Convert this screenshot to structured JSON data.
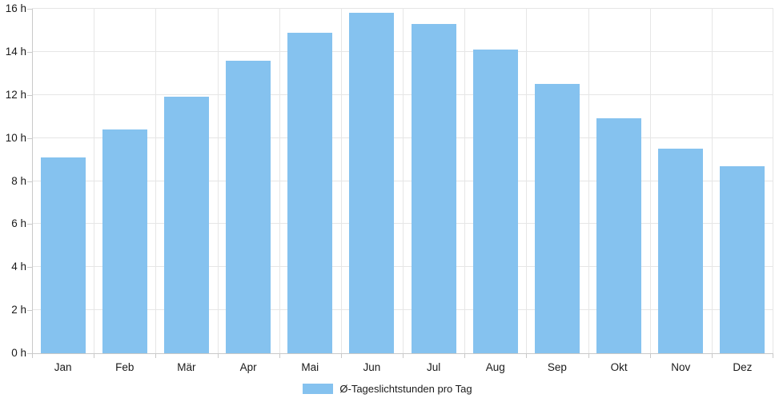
{
  "chart_data": {
    "type": "bar",
    "title": "",
    "xlabel": "",
    "ylabel": "",
    "categories": [
      "Jan",
      "Feb",
      "Mär",
      "Apr",
      "Mai",
      "Jun",
      "Jul",
      "Aug",
      "Sep",
      "Okt",
      "Nov",
      "Dez"
    ],
    "series": [
      {
        "name": "Ø-Tageslichtstunden pro Tag",
        "values": [
          9.1,
          10.4,
          11.9,
          13.6,
          14.9,
          15.8,
          15.3,
          14.1,
          12.5,
          10.9,
          9.5,
          8.7
        ]
      }
    ],
    "ylim": [
      0,
      16
    ],
    "y_tick_step": 2,
    "y_tick_labels": [
      "0 h",
      "2 h",
      "4 h",
      "6 h",
      "8 h",
      "10 h",
      "12 h",
      "14 h",
      "16 h"
    ],
    "grid": true,
    "legend_position": "bottom",
    "colors": {
      "bar": "#85c2ef",
      "grid": "#e6e6e6",
      "axis": "#c9c9c9",
      "text": "#1a1a1a"
    }
  },
  "legend": {
    "label": "Ø-Tageslichtstunden pro Tag",
    "swatch_color": "#85c2ef"
  }
}
